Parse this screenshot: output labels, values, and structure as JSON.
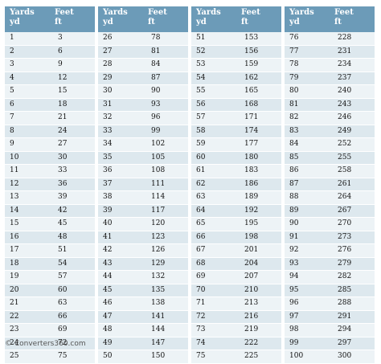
{
  "header": {
    "yards": "Yards",
    "yards_unit": "yd",
    "feet": "Feet",
    "feet_unit": "ft"
  },
  "columns": [
    {
      "rows": [
        [
          "1",
          "3"
        ],
        [
          "2",
          "6"
        ],
        [
          "3",
          "9"
        ],
        [
          "4",
          "12"
        ],
        [
          "5",
          "15"
        ],
        [
          "6",
          "18"
        ],
        [
          "7",
          "21"
        ],
        [
          "8",
          "24"
        ],
        [
          "9",
          "27"
        ],
        [
          "10",
          "30"
        ],
        [
          "11",
          "33"
        ],
        [
          "12",
          "36"
        ],
        [
          "13",
          "39"
        ],
        [
          "14",
          "42"
        ],
        [
          "15",
          "45"
        ],
        [
          "16",
          "48"
        ],
        [
          "17",
          "51"
        ],
        [
          "18",
          "54"
        ],
        [
          "19",
          "57"
        ],
        [
          "20",
          "60"
        ],
        [
          "21",
          "63"
        ],
        [
          "22",
          "66"
        ],
        [
          "23",
          "69"
        ],
        [
          "24",
          "72"
        ],
        [
          "25",
          "75"
        ]
      ]
    },
    {
      "rows": [
        [
          "26",
          "78"
        ],
        [
          "27",
          "81"
        ],
        [
          "28",
          "84"
        ],
        [
          "29",
          "87"
        ],
        [
          "30",
          "90"
        ],
        [
          "31",
          "93"
        ],
        [
          "32",
          "96"
        ],
        [
          "33",
          "99"
        ],
        [
          "34",
          "102"
        ],
        [
          "35",
          "105"
        ],
        [
          "36",
          "108"
        ],
        [
          "37",
          "111"
        ],
        [
          "38",
          "114"
        ],
        [
          "39",
          "117"
        ],
        [
          "40",
          "120"
        ],
        [
          "41",
          "123"
        ],
        [
          "42",
          "126"
        ],
        [
          "43",
          "129"
        ],
        [
          "44",
          "132"
        ],
        [
          "45",
          "135"
        ],
        [
          "46",
          "138"
        ],
        [
          "47",
          "141"
        ],
        [
          "48",
          "144"
        ],
        [
          "49",
          "147"
        ],
        [
          "50",
          "150"
        ]
      ]
    },
    {
      "rows": [
        [
          "51",
          "153"
        ],
        [
          "52",
          "156"
        ],
        [
          "53",
          "159"
        ],
        [
          "54",
          "162"
        ],
        [
          "55",
          "165"
        ],
        [
          "56",
          "168"
        ],
        [
          "57",
          "171"
        ],
        [
          "58",
          "174"
        ],
        [
          "59",
          "177"
        ],
        [
          "60",
          "180"
        ],
        [
          "61",
          "183"
        ],
        [
          "62",
          "186"
        ],
        [
          "63",
          "189"
        ],
        [
          "64",
          "192"
        ],
        [
          "65",
          "195"
        ],
        [
          "66",
          "198"
        ],
        [
          "67",
          "201"
        ],
        [
          "68",
          "204"
        ],
        [
          "69",
          "207"
        ],
        [
          "70",
          "210"
        ],
        [
          "71",
          "213"
        ],
        [
          "72",
          "216"
        ],
        [
          "73",
          "219"
        ],
        [
          "74",
          "222"
        ],
        [
          "75",
          "225"
        ]
      ]
    },
    {
      "rows": [
        [
          "76",
          "228"
        ],
        [
          "77",
          "231"
        ],
        [
          "78",
          "234"
        ],
        [
          "79",
          "237"
        ],
        [
          "80",
          "240"
        ],
        [
          "81",
          "243"
        ],
        [
          "82",
          "246"
        ],
        [
          "83",
          "249"
        ],
        [
          "84",
          "252"
        ],
        [
          "85",
          "255"
        ],
        [
          "86",
          "258"
        ],
        [
          "87",
          "261"
        ],
        [
          "88",
          "264"
        ],
        [
          "89",
          "267"
        ],
        [
          "90",
          "270"
        ],
        [
          "91",
          "273"
        ],
        [
          "92",
          "276"
        ],
        [
          "93",
          "279"
        ],
        [
          "94",
          "282"
        ],
        [
          "95",
          "285"
        ],
        [
          "96",
          "288"
        ],
        [
          "97",
          "291"
        ],
        [
          "98",
          "294"
        ],
        [
          "99",
          "297"
        ],
        [
          "100",
          "300"
        ]
      ]
    }
  ],
  "footer": {
    "text": "© Converters360.com"
  }
}
